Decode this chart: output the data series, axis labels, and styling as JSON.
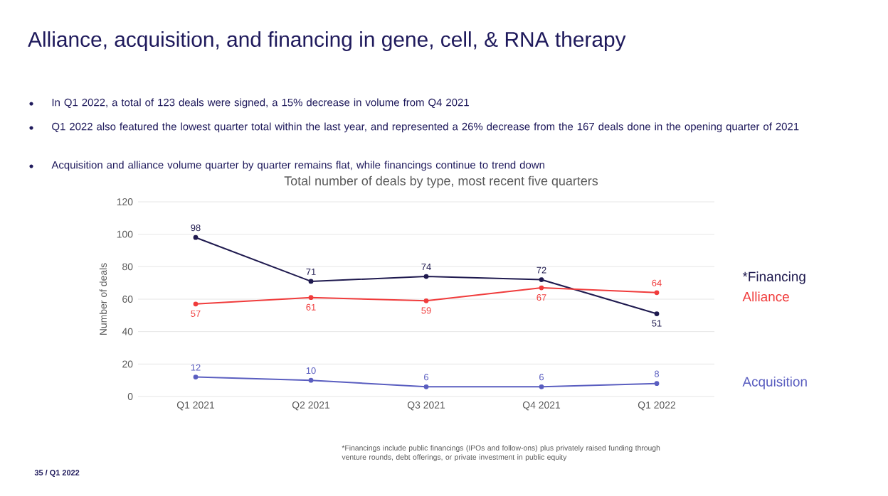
{
  "chart_data": {
    "type": "line",
    "title": "Alliance, acquisition, and financing in gene, cell, & RNA therapy",
    "subtitle": "Total number of deals by type, most recent five quarters",
    "annotations": [
      "In Q1 2022, a total of 123 deals were signed, a 15% decrease in volume from Q4 2021",
      "Q1 2022 also featured the lowest quarter total within the last year, and represented a 26% decrease from the 167 deals done in the opening quarter of 2021",
      "Acquisition and alliance volume quarter by quarter remains flat, while financings continue to trend down",
      "*Financings include public financings (IPOs and follow-ons) plus privately raised funding through venture rounds, debt offerings, or private investment in public equity",
      "35 / Q1 2022"
    ],
    "categories": [
      "Q1 2021",
      "Q2 2021",
      "Q3 2021",
      "Q4 2021",
      "Q1 2022"
    ],
    "series": [
      {
        "name": "*Financing",
        "color": "#1f1a4f",
        "values": [
          98,
          71,
          74,
          72,
          51
        ]
      },
      {
        "name": "Alliance",
        "color": "#f03c3c",
        "values": [
          57,
          61,
          59,
          67,
          64
        ]
      },
      {
        "name": "Acquisition",
        "color": "#5a5ec0",
        "values": [
          12,
          10,
          6,
          6,
          8
        ]
      }
    ],
    "ylabel": "Number of deals",
    "ylim": [
      0,
      120
    ],
    "yticks": [
      0,
      20,
      40,
      60,
      80,
      100,
      120
    ],
    "grid": "y",
    "legend": "right",
    "marker": "circle",
    "data_labels": true
  }
}
